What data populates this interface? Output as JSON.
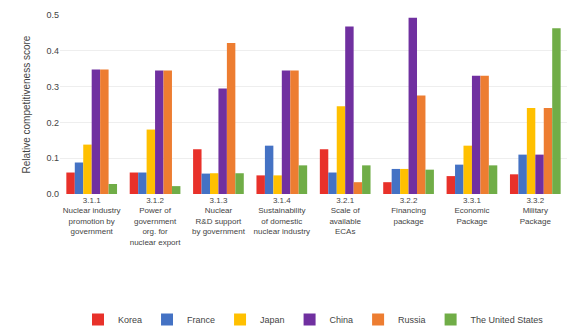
{
  "chart_data": {
    "type": "bar",
    "ylabel": "Relative competitiveness score",
    "categories": [
      "3.1.1\nNuclear industry\npromotion by\ngovernment",
      "3.1.2\nPower of\ngovernment\norg. for\nnuclear export",
      "3.1.3\nNuclear\nR&D support\nby government",
      "3.1.4\nSustainability\nof domestic\nnuclear industry",
      "3.2.1\nScale of\navailable\nECAs",
      "3.2.2\nFinancing\npackage",
      "3.3.1\nEconomic\nPackage",
      "3.3.2\nMilitary\nPackage"
    ],
    "series": [
      {
        "name": "Korea",
        "color": "#e8312a",
        "values": [
          0.06,
          0.06,
          0.125,
          0.052,
          0.125,
          0.033,
          0.05,
          0.055
        ]
      },
      {
        "name": "France",
        "color": "#4472c4",
        "values": [
          0.088,
          0.06,
          0.057,
          0.135,
          0.06,
          0.07,
          0.082,
          0.11
        ]
      },
      {
        "name": "Japan",
        "color": "#ffc000",
        "values": [
          0.138,
          0.18,
          0.058,
          0.052,
          0.245,
          0.07,
          0.135,
          0.24
        ]
      },
      {
        "name": "China",
        "color": "#7030a0",
        "values": [
          0.348,
          0.345,
          0.295,
          0.345,
          0.468,
          0.492,
          0.33,
          0.11
        ]
      },
      {
        "name": "Russia",
        "color": "#ed7d31",
        "values": [
          0.348,
          0.345,
          0.422,
          0.345,
          0.033,
          0.275,
          0.33,
          0.24
        ]
      },
      {
        "name": "The United States",
        "color": "#70ad47",
        "values": [
          0.028,
          0.022,
          0.058,
          0.08,
          0.08,
          0.068,
          0.08,
          0.463
        ]
      }
    ],
    "ylim": [
      0,
      0.5
    ],
    "yticks": [
      {
        "value": 0,
        "label": "0.0"
      },
      0.1,
      0.2,
      0.3,
      0.4,
      0.5
    ],
    "grid": true,
    "legend": "bottom"
  }
}
